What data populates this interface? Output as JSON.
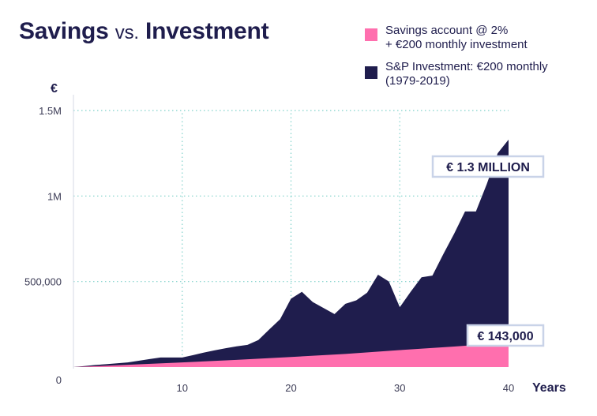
{
  "title": {
    "part1": "Savings",
    "part2": "vs.",
    "part3": "Investment"
  },
  "legend": {
    "items": [
      {
        "line1": "Savings account @ 2%",
        "line2": "+  €200 monthly investment",
        "color": "#ff6fae"
      },
      {
        "line1": "S&P Investment: €200 monthly",
        "line2": "(1979-2019)",
        "color": "#1f1d4d"
      }
    ]
  },
  "chart_data": {
    "type": "area",
    "title": "Savings vs. Investment",
    "xlabel": "Years",
    "ylabel": "€",
    "xlim": [
      0,
      40
    ],
    "ylim": [
      0,
      1500000
    ],
    "x_ticks": [
      10,
      20,
      30,
      40
    ],
    "x_tick_labels": [
      "10",
      "20",
      "30",
      "40"
    ],
    "y_ticks": [
      0,
      500000,
      1000000,
      1500000
    ],
    "y_tick_labels": [
      "0",
      "500,000",
      "1M",
      "1.5M"
    ],
    "grid": true,
    "legend_position": "top-right",
    "series": [
      {
        "name": "S&P Investment: €200 monthly (1979-2019)",
        "color": "#1f1d4d",
        "x": [
          0,
          1,
          2,
          3,
          4,
          5,
          6,
          7,
          8,
          9,
          10,
          11,
          12,
          13,
          14,
          15,
          16,
          17,
          18,
          19,
          20,
          21,
          22,
          23,
          24,
          25,
          26,
          27,
          28,
          29,
          30,
          31,
          32,
          33,
          34,
          35,
          36,
          37,
          38,
          39,
          40
        ],
        "values": [
          0,
          6000,
          12000,
          17000,
          22000,
          27000,
          37000,
          47000,
          56000,
          56000,
          56000,
          70000,
          85000,
          98000,
          110000,
          121000,
          130000,
          158000,
          220000,
          280000,
          400000,
          440000,
          380000,
          345000,
          310000,
          370000,
          390000,
          435000,
          540000,
          500000,
          350000,
          440000,
          525000,
          535000,
          660000,
          780000,
          910000,
          910000,
          1070000,
          1250000,
          1330000
        ]
      },
      {
        "name": "Savings account @ 2% + €200 monthly investment",
        "color": "#ff6fae",
        "x": [
          0,
          5,
          10,
          15,
          20,
          25,
          30,
          35,
          40
        ],
        "values": [
          0,
          13000,
          27000,
          42000,
          59000,
          77000,
          99000,
          120000,
          143000
        ]
      }
    ],
    "annotations": [
      {
        "text": "€ 1.3 MILLION",
        "series": 0,
        "x": 40,
        "y": 1330000
      },
      {
        "text": "€ 143,000",
        "series": 1,
        "x": 40,
        "y": 143000
      }
    ]
  }
}
